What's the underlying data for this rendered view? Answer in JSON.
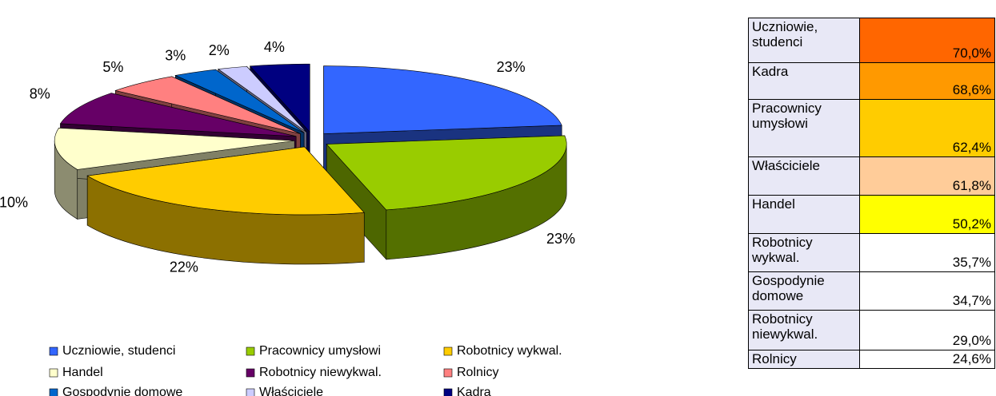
{
  "chart_data": {
    "type": "pie3d",
    "categories": [
      "Uczniowie, studenci",
      "Pracownicy umysłowi",
      "Robotnicy wykwal.",
      "Handel",
      "Robotnicy niewykwal.",
      "Rolnicy",
      "Gospodynie domowe",
      "Właściciele",
      "Kadra"
    ],
    "values": [
      23,
      23,
      22,
      10,
      8,
      5,
      3,
      2,
      4
    ],
    "value_labels": [
      "23%",
      "23%",
      "22%",
      "10%",
      "8%",
      "5%",
      "3%",
      "2%",
      "4%"
    ],
    "colors": [
      "#3366ff",
      "#99cc00",
      "#ffcc00",
      "#ffffcc",
      "#660066",
      "#ff8080",
      "#0066cc",
      "#ccccff",
      "#000080"
    ],
    "legend": "bottom"
  },
  "table": {
    "rows": [
      [
        "Uczniowie, studenci",
        "70,0%"
      ],
      [
        "Kadra",
        "68,6%"
      ],
      [
        "Pracownicy umysłowi",
        "62,4%"
      ],
      [
        "Właściciele",
        "61,8%"
      ],
      [
        "Handel",
        "50,2%"
      ],
      [
        "Robotnicy wykwal.",
        "35,7%"
      ],
      [
        "Gospodynie domowe",
        "34,7%"
      ],
      [
        "Robotnicy niewykwal.",
        "29,0%"
      ],
      [
        "Rolnicy",
        "24,6%"
      ]
    ],
    "value_colors": [
      "#ff6600",
      "#ff9900",
      "#ffcc00",
      "#ffcc99",
      "#ffff00",
      "#ffffff",
      "#ffffff",
      "#ffffff",
      "#ffffff"
    ]
  }
}
